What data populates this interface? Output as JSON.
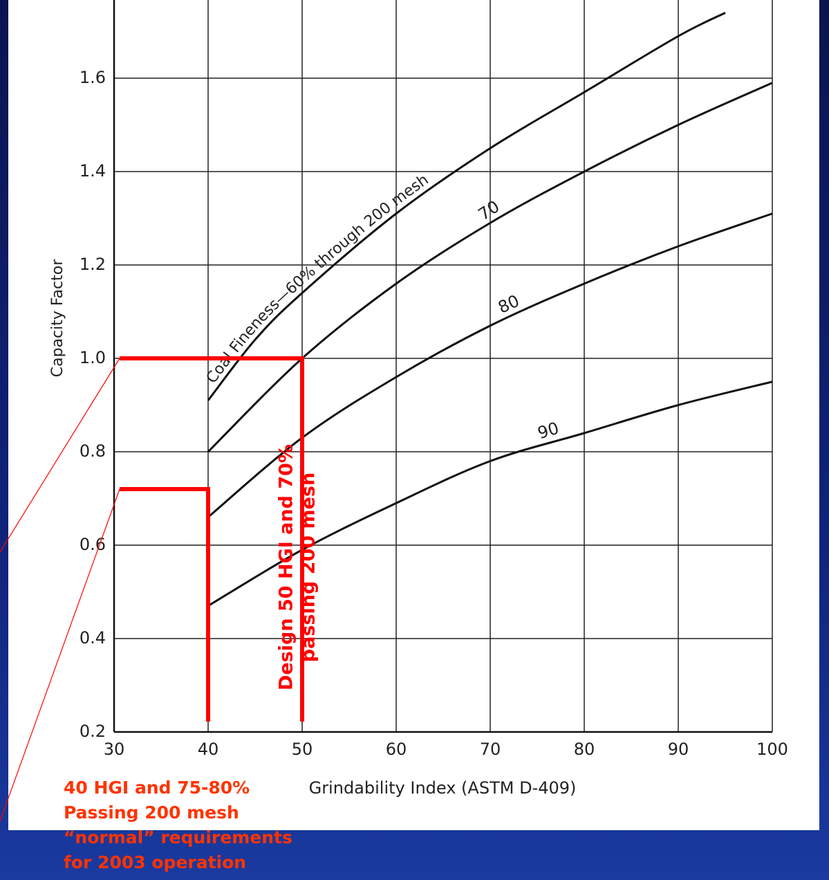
{
  "chart_data": {
    "type": "line",
    "x_label": "Grindability Index (ASTM D-409)",
    "y_label": "Capacity Factor",
    "xlim": [
      30,
      100
    ],
    "ylim": [
      0.2,
      1.76
    ],
    "xticks": [
      30,
      40,
      50,
      60,
      70,
      80,
      90,
      100
    ],
    "yticks": [
      0.2,
      0.4,
      0.6,
      0.8,
      {
        "value": 1,
        "label": "1.0"
      },
      1.2,
      1.4,
      1.6
    ],
    "grid": true,
    "series": [
      {
        "name": "Coal Fineness—60% through 200 mesh",
        "color": "#111111",
        "x": [
          40,
          45,
          50,
          60,
          70,
          80,
          90,
          95
        ],
        "values": [
          0.91,
          1.04,
          1.14,
          1.31,
          1.45,
          1.57,
          1.69,
          1.74
        ]
      },
      {
        "name": "70",
        "color": "#111111",
        "x": [
          40,
          50,
          60,
          70,
          80,
          90,
          100
        ],
        "values": [
          0.8,
          1.0,
          1.16,
          1.29,
          1.4,
          1.5,
          1.59
        ]
      },
      {
        "name": "80",
        "color": "#111111",
        "x": [
          40,
          50,
          60,
          70,
          80,
          90,
          100
        ],
        "values": [
          0.66,
          0.83,
          0.96,
          1.07,
          1.16,
          1.24,
          1.31
        ]
      },
      {
        "name": "90",
        "color": "#111111",
        "x": [
          40,
          50,
          60,
          70,
          80,
          90,
          100
        ],
        "values": [
          0.47,
          0.59,
          0.69,
          0.78,
          0.84,
          0.9,
          0.95
        ]
      }
    ],
    "reference_lines": [
      {
        "x": 50,
        "y": 1,
        "color": "#ff0000",
        "text": [
          "Design 50 HGI and 70%",
          "passing 200 mesh"
        ]
      },
      {
        "x": 40,
        "y": 0.72,
        "color": "#ff0000",
        "text": [
          "40 HGI and 75-80%",
          "Passing 200 mesh",
          "“normal” requirements",
          "for 2003 operation"
        ]
      }
    ]
  }
}
